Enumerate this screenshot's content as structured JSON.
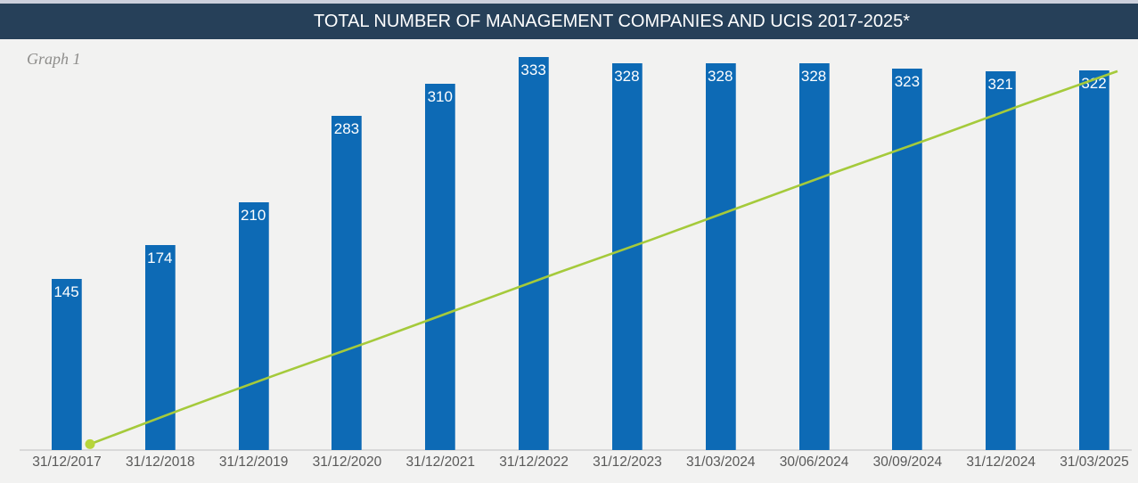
{
  "page": {
    "graph_label": "Graph 1"
  },
  "header": {
    "title": "TOTAL NUMBER OF MANAGEMENT COMPANIES AND UCIS 2017-2025*"
  },
  "colors": {
    "top_strip": "#ccd0dc",
    "header_background": "#264059",
    "header_text": "#ffffff",
    "page_background": "#f2f2f1",
    "bar_fill": "#0d6ab5",
    "bar_value_text": "#ffffff",
    "trend_line": "#a5ca3b",
    "trend_marker": "#b7d53b",
    "axis_line": "#d9d9d9",
    "tick_text": "#595959",
    "graph_label_text": "#8e8d8b"
  },
  "chart_data": {
    "type": "bar",
    "title": "TOTAL NUMBER OF MANAGEMENT COMPANIES AND UCIS 2017-2025*",
    "subtitle": "Graph 1",
    "categories": [
      "31/12/2017",
      "31/12/2018",
      "31/12/2019",
      "31/12/2020",
      "31/12/2021",
      "31/12/2022",
      "31/12/2023",
      "31/03/2024",
      "30/06/2024",
      "30/09/2024",
      "31/12/2024",
      "31/03/2025"
    ],
    "series": [
      {
        "name": "Total number of management companies and UCIS",
        "type": "bar",
        "color": "#0d6ab5",
        "values": [
          145,
          174,
          210,
          283,
          310,
          333,
          328,
          328,
          328,
          323,
          321,
          322
        ],
        "value_labels": "white numbers inside top of each bar"
      },
      {
        "name": "Rising trend line (unlabeled)",
        "type": "line",
        "color": "#a5ca3b",
        "marker_color": "#b7d53b",
        "marker": "filled circle at first point only",
        "values": [
          5,
          35,
          64,
          92,
          121,
          150,
          178,
          207,
          236,
          264,
          293,
          321
        ],
        "note": "straight diagonal green line from near zero at 31/12/2017 to ~321 at 31/03/2025; values estimated against the bar scale, no visible secondary axis or data labels"
      }
    ],
    "xlabel": "",
    "ylabel": "",
    "ylim": [
      0,
      348
    ],
    "grid": false,
    "legend": "none"
  }
}
